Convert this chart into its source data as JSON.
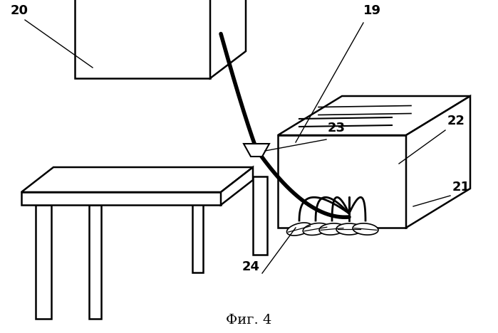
{
  "caption": "Фиг. 4",
  "background_color": "#ffffff",
  "line_color": "#000000",
  "lw_main": 1.8,
  "lw_thick": 3.0,
  "lw_cable_inner": 2.0
}
